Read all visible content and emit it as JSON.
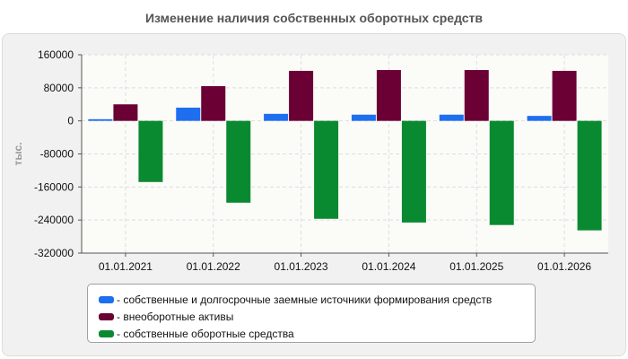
{
  "title": "Изменение наличия собственных оборотных средств",
  "chart_data": {
    "type": "bar",
    "title": "Изменение наличия собственных оборотных средств",
    "ylabel": "тыс.",
    "xlabel": "",
    "categories": [
      "01.01.2021",
      "01.01.2022",
      "01.01.2023",
      "01.01.2024",
      "01.01.2025",
      "01.01.2026"
    ],
    "ylim": [
      -320000,
      160000
    ],
    "yticks": [
      160000,
      80000,
      0,
      -80000,
      -160000,
      -240000,
      -320000
    ],
    "grid": true,
    "legend_position": "bottom",
    "series": [
      {
        "name": "- собственные и долгосрочные заемные источники формирования средств",
        "color": "#1e6ff0",
        "values": [
          4000,
          32000,
          17000,
          15000,
          15000,
          12000
        ]
      },
      {
        "name": "- внеоборотные активы",
        "color": "#6a0034",
        "values": [
          40000,
          84000,
          121000,
          123000,
          123000,
          121000
        ]
      },
      {
        "name": "- собственные оборотные средства",
        "color": "#0a8a30",
        "values": [
          -148000,
          -198000,
          -237000,
          -246000,
          -252000,
          -265000
        ]
      }
    ]
  }
}
